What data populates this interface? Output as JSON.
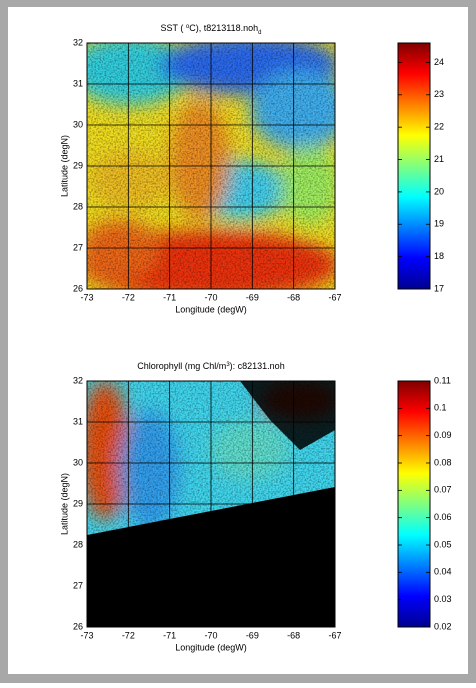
{
  "chart_data": [
    {
      "type": "image-map",
      "title": [
        {
          "text": "SST ( "
        },
        {
          "text": "o",
          "script": "super"
        },
        {
          "text": "C), t8213118.noh"
        },
        {
          "text": "d",
          "script": "sub"
        }
      ],
      "xlabel": "Longitude (degW)",
      "ylabel": "Latitude (degN)",
      "xlim": [
        -73,
        -67
      ],
      "xticks": [
        -73,
        -72,
        -71,
        -70,
        -69,
        -68,
        -67
      ],
      "ylim": [
        26,
        32
      ],
      "yticks": [
        26,
        27,
        28,
        29,
        30,
        31,
        32
      ],
      "clim": [
        17,
        24.6
      ],
      "cticks": [
        17,
        18,
        19,
        20,
        21,
        22,
        23,
        24
      ],
      "colormap": "jet",
      "grid": true
    },
    {
      "type": "image-map",
      "title": [
        {
          "text": "Chlorophyll (mg Chl/m"
        },
        {
          "text": "3",
          "script": "super"
        },
        {
          "text": "): c82131.noh"
        }
      ],
      "xlabel": "Longitude (degW)",
      "ylabel": "Latitude (degN)",
      "xlim": [
        -73,
        -67
      ],
      "xticks": [
        -73,
        -72,
        -71,
        -70,
        -69,
        -68,
        -67
      ],
      "ylim": [
        26,
        32
      ],
      "yticks": [
        26,
        27,
        28,
        29,
        30,
        31,
        32
      ],
      "clim": [
        0.02,
        0.11
      ],
      "cticks": [
        0.02,
        0.03,
        0.04,
        0.05,
        0.06,
        0.07,
        0.08,
        0.09,
        0.1,
        0.11
      ],
      "colormap": "jet",
      "grid": true
    }
  ]
}
